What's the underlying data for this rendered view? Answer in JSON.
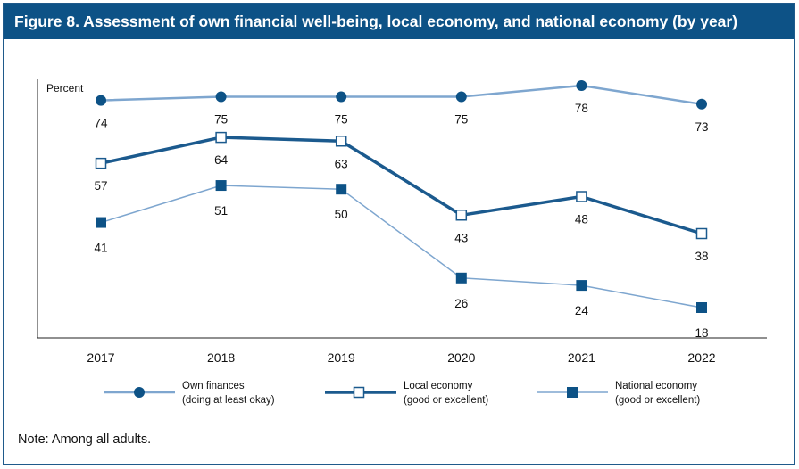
{
  "figure": {
    "title": "Figure 8. Assessment of own financial well-being, local economy, and national economy (by year)",
    "note": "Note: Among all adults."
  },
  "colors": {
    "header_bg": "#0d5286",
    "own": "#7ea6cf",
    "local": "#1b5a8e",
    "national": "#7ea6cf",
    "national_marker": "#0d5286",
    "own_marker": "#0d5286"
  },
  "chart_data": {
    "type": "line",
    "title": "",
    "xlabel": "",
    "ylabel": "Percent",
    "ylim": [
      10,
      85
    ],
    "grid": false,
    "categories": [
      "2017",
      "2018",
      "2019",
      "2020",
      "2021",
      "2022"
    ],
    "series": [
      {
        "name": "Own finances",
        "name_line2": "(doing at least okay)",
        "marker": "filled-circle",
        "values": [
          74,
          75,
          75,
          75,
          78,
          73
        ]
      },
      {
        "name": "Local economy",
        "name_line2": "(good or excellent)",
        "marker": "open-square",
        "values": [
          57,
          64,
          63,
          43,
          48,
          38
        ]
      },
      {
        "name": "National economy",
        "name_line2": "(good or excellent)",
        "marker": "filled-square",
        "values": [
          41,
          51,
          50,
          26,
          24,
          18
        ]
      }
    ],
    "legend_position": "bottom"
  }
}
